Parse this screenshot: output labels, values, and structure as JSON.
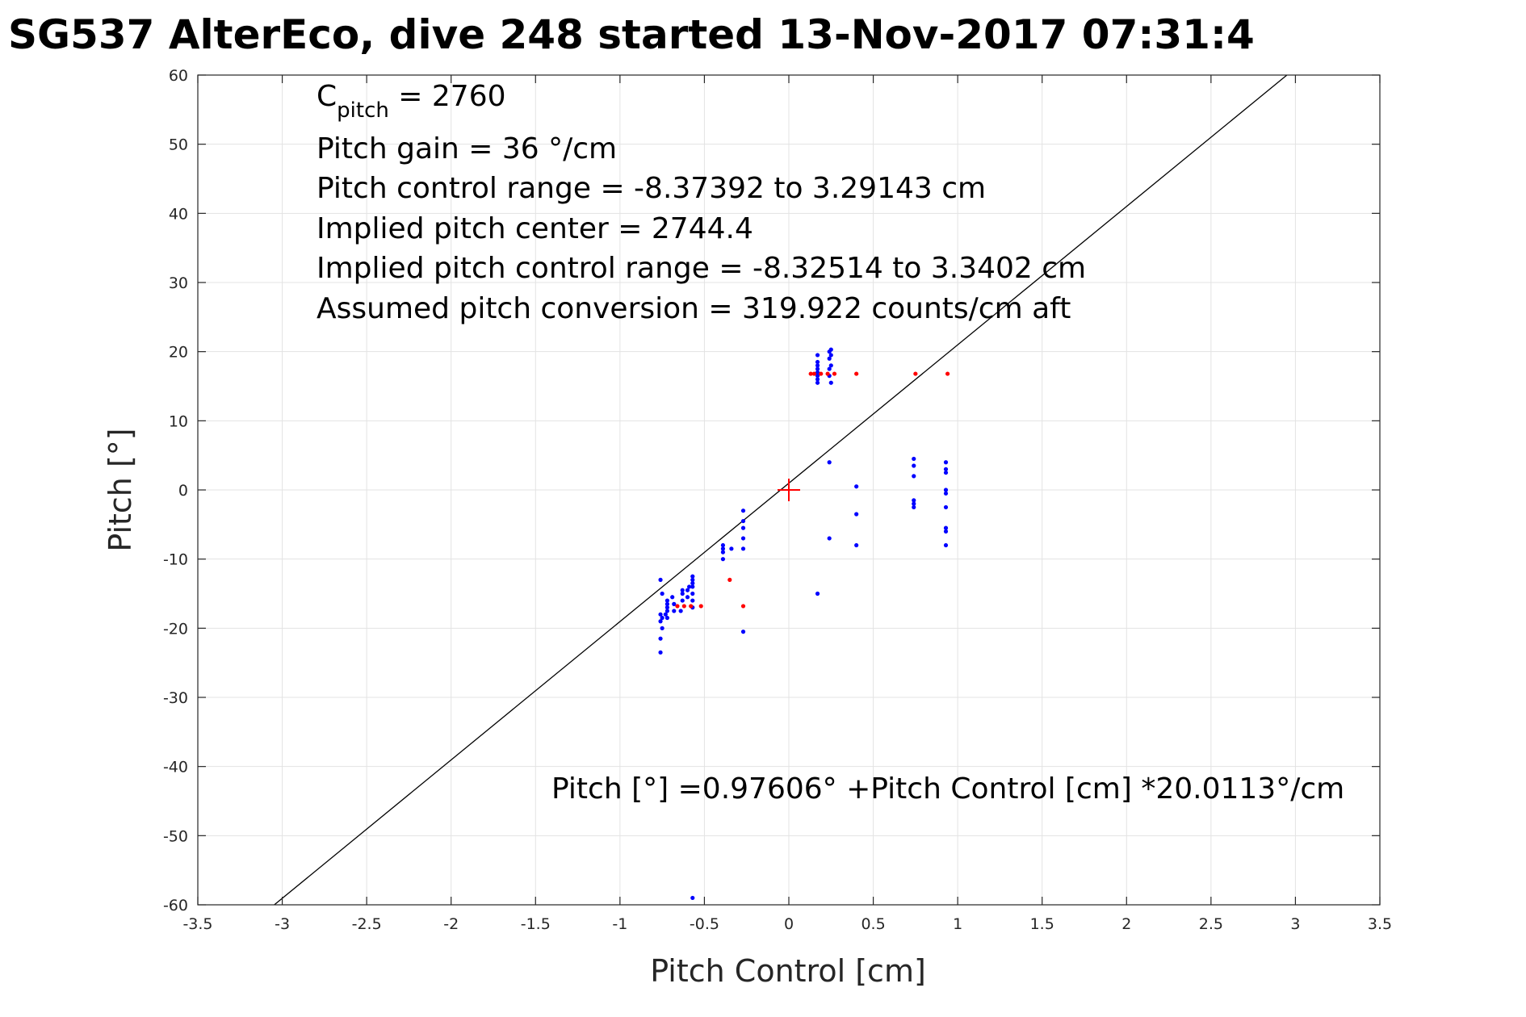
{
  "chart_data": {
    "type": "scatter",
    "title": "SG537 AlterEco, dive 248 started 13-Nov-2017 07:31:4",
    "xlabel": "Pitch Control [cm]",
    "ylabel": "Pitch [°]",
    "xlim": [
      -3.5,
      3.5
    ],
    "ylim": [
      -60,
      60
    ],
    "xticks": [
      -3.5,
      -3,
      -2.5,
      -2,
      -1.5,
      -1,
      -0.5,
      0,
      0.5,
      1,
      1.5,
      2,
      2.5,
      3,
      3.5
    ],
    "xtick_labels": [
      "-3.5",
      "-3",
      "-2.5",
      "-2",
      "-1.5",
      "-1",
      "-0.5",
      "0",
      "0.5",
      "1",
      "1.5",
      "2",
      "2.5",
      "3",
      "3.5"
    ],
    "yticks": [
      -60,
      -50,
      -40,
      -30,
      -20,
      -10,
      0,
      10,
      20,
      30,
      40,
      50,
      60
    ],
    "ytick_labels": [
      "-60",
      "-50",
      "-40",
      "-30",
      "-20",
      "-10",
      "0",
      "10",
      "20",
      "30",
      "40",
      "50",
      "60"
    ],
    "grid": true,
    "annotations": {
      "c_pitch_prefix": "C",
      "c_pitch_sub": "pitch",
      "c_pitch_value": " = 2760",
      "lines": [
        "Pitch gain = 36 °/cm",
        "Pitch control range = -8.37392 to 3.29143 cm",
        "Implied pitch center = 2744.4",
        "Implied pitch control range = -8.32514 to 3.3402 cm",
        "Assumed pitch conversion = 319.922 counts/cm aft"
      ],
      "fit_equation": "Pitch [°] =0.97606° +Pitch Control [cm] *20.0113°/cm"
    },
    "fit_line": {
      "intercept": 0.97606,
      "slope": 20.0113,
      "color": "#000000"
    },
    "center_marker": {
      "x": 0,
      "y": 0,
      "color": "#ff0000"
    },
    "series": [
      {
        "color": "#0000ff",
        "points": [
          [
            -0.76,
            -13
          ],
          [
            -0.75,
            -15
          ],
          [
            -0.76,
            -18
          ],
          [
            -0.75,
            -18.5
          ],
          [
            -0.76,
            -19
          ],
          [
            -0.75,
            -20
          ],
          [
            -0.76,
            -21.5
          ],
          [
            -0.76,
            -23.5
          ],
          [
            -0.73,
            -18
          ],
          [
            -0.72,
            -17
          ],
          [
            -0.72,
            -16.5
          ],
          [
            -0.72,
            -16
          ],
          [
            -0.72,
            -17.5
          ],
          [
            -0.72,
            -18.5
          ],
          [
            -0.69,
            -15.5
          ],
          [
            -0.68,
            -16.5
          ],
          [
            -0.68,
            -17.5
          ],
          [
            -0.64,
            -17.5
          ],
          [
            -0.63,
            -16
          ],
          [
            -0.63,
            -15
          ],
          [
            -0.63,
            -14.5
          ],
          [
            -0.6,
            -15.5
          ],
          [
            -0.6,
            -14.5
          ],
          [
            -0.59,
            -14
          ],
          [
            -0.57,
            -12.5
          ],
          [
            -0.57,
            -13
          ],
          [
            -0.57,
            -13.5
          ],
          [
            -0.57,
            -14
          ],
          [
            -0.57,
            -15
          ],
          [
            -0.57,
            -16
          ],
          [
            -0.57,
            -17
          ],
          [
            -0.57,
            -59
          ],
          [
            -0.39,
            -8
          ],
          [
            -0.39,
            -8.5
          ],
          [
            -0.39,
            -9
          ],
          [
            -0.39,
            -10
          ],
          [
            -0.34,
            -8.5
          ],
          [
            -0.27,
            -3
          ],
          [
            -0.27,
            -4.5
          ],
          [
            -0.27,
            -5.5
          ],
          [
            -0.27,
            -7
          ],
          [
            -0.27,
            -8.5
          ],
          [
            -0.27,
            -20.5
          ],
          [
            0.17,
            -15
          ],
          [
            0.17,
            15.5
          ],
          [
            0.17,
            16
          ],
          [
            0.17,
            16.5
          ],
          [
            0.17,
            17
          ],
          [
            0.17,
            17.5
          ],
          [
            0.17,
            18
          ],
          [
            0.17,
            18.5
          ],
          [
            0.17,
            19.5
          ],
          [
            0.24,
            16.5
          ],
          [
            0.24,
            17.5
          ],
          [
            0.25,
            18
          ],
          [
            0.24,
            19
          ],
          [
            0.25,
            19.5
          ],
          [
            0.24,
            20
          ],
          [
            0.25,
            20.3
          ],
          [
            0.25,
            15.5
          ],
          [
            0.24,
            4
          ],
          [
            0.24,
            -7
          ],
          [
            0.4,
            0.5
          ],
          [
            0.4,
            -3.5
          ],
          [
            0.4,
            -8
          ],
          [
            0.74,
            4.5
          ],
          [
            0.74,
            3.5
          ],
          [
            0.74,
            2
          ],
          [
            0.74,
            -1.5
          ],
          [
            0.74,
            -2
          ],
          [
            0.74,
            -2.5
          ],
          [
            0.93,
            4
          ],
          [
            0.93,
            3
          ],
          [
            0.93,
            2.5
          ],
          [
            0.93,
            0
          ],
          [
            0.93,
            -0.5
          ],
          [
            0.93,
            -2.5
          ],
          [
            0.93,
            -5.5
          ],
          [
            0.93,
            -6
          ],
          [
            0.93,
            -8
          ]
        ]
      },
      {
        "color": "#ff0000",
        "points": [
          [
            -0.66,
            -16.8
          ],
          [
            -0.62,
            -16.8
          ],
          [
            -0.58,
            -16.8
          ],
          [
            -0.52,
            -16.8
          ],
          [
            -0.35,
            -13
          ],
          [
            -0.27,
            -16.8
          ],
          [
            0.13,
            16.8
          ],
          [
            0.15,
            16.8
          ],
          [
            0.19,
            16.8
          ],
          [
            0.23,
            16.8
          ],
          [
            0.27,
            16.8
          ],
          [
            0.4,
            16.8
          ],
          [
            0.75,
            16.8
          ],
          [
            0.94,
            16.8
          ]
        ]
      }
    ]
  }
}
